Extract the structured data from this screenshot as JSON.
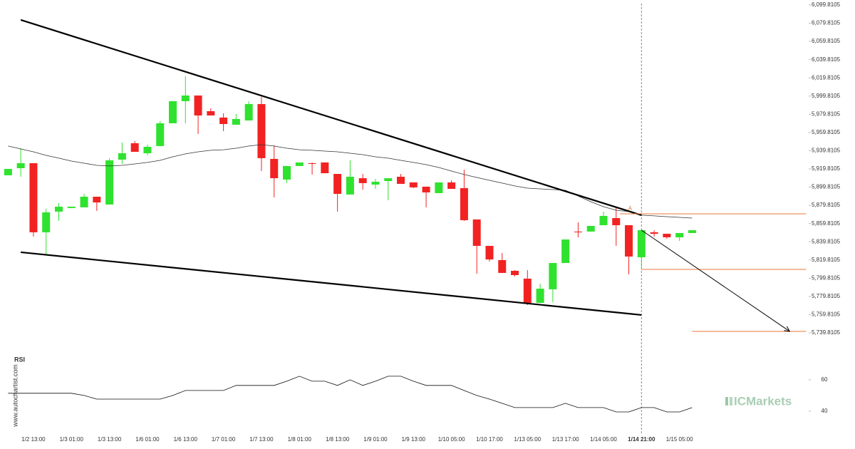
{
  "chart_data": {
    "type": "candlestick",
    "categories": [
      null,
      null,
      "1/2 13:00",
      null,
      null,
      "1/3 01:00",
      null,
      null,
      "1/3 13:00",
      null,
      null,
      "1/6 01:00",
      null,
      null,
      "1/6 13:00",
      null,
      null,
      "1/7 01:00",
      null,
      null,
      "1/7 13:00",
      null,
      null,
      "1/8 01:00",
      null,
      null,
      "1/8 13:00",
      null,
      null,
      "1/9 01:00",
      null,
      null,
      "1/9 13:00",
      null,
      null,
      "1/10 05:00",
      null,
      null,
      "1/10 17:00",
      null,
      null,
      "1/13 05:00",
      null,
      null,
      "1/13 17:00",
      null,
      null,
      "1/14 05:00",
      null,
      null,
      "1/14 21:00",
      null,
      null,
      "1/15 05:00",
      null
    ],
    "open": [
      5912.8,
      5920.6,
      5926.1,
      5850.2,
      5872.9,
      5876.8,
      5877.6,
      5889.3,
      5880.7,
      5930.0,
      5948.0,
      5937.0,
      5944.9,
      5969.9,
      5994.2,
      6000.4,
      5983.2,
      5976.2,
      5968.3,
      5973.0,
      5991.0,
      5930.8,
      5908.1,
      5923.0,
      5926.1,
      5926.9,
      5914.3,
      5891.7,
      5909.6,
      5902.6,
      5906.5,
      5911.2,
      5905.0,
      5900.3,
      5893.2,
      5905.0,
      5898.7,
      5864.3,
      5835.3,
      5819.7,
      5807.9,
      5799.3,
      5772.7,
      5787.6,
      5816.5,
      5851.0,
      5851.0,
      5858.0,
      5865.8,
      5858.0,
      5822.8,
      5850.2,
      5848.6,
      5844.7,
      5849.4
    ],
    "high": [
      5919.8,
      5942.5,
      5926.1,
      5876.0,
      5882.3,
      5878.3,
      5892.4,
      5889.3,
      5931.6,
      5948.8,
      5950.3,
      5946.4,
      5972.3,
      5994.2,
      6021.6,
      6000.4,
      5986.3,
      5980.9,
      5980.1,
      5994.2,
      5998.9,
      5945.6,
      5923.0,
      5926.9,
      5926.9,
      5926.9,
      5914.3,
      5929.2,
      5914.3,
      5908.9,
      5909.6,
      5914.3,
      5905.0,
      5900.3,
      5905.0,
      5907.3,
      5919.0,
      5864.3,
      5835.3,
      5827.5,
      5808.7,
      5808.7,
      5793.8,
      5816.5,
      5842.3,
      5861.1,
      5857.2,
      5872.9,
      5878.3,
      5858.0,
      5852.5,
      5852.5,
      5848.6,
      5849.4,
      5852.5
    ],
    "low": [
      5912.8,
      5911.2,
      5845.5,
      5825.9,
      5862.7,
      5876.8,
      5877.6,
      5873.7,
      5880.7,
      5925.3,
      5938.6,
      5934.7,
      5944.9,
      5969.9,
      5969.9,
      5958.2,
      5978.5,
      5961.3,
      5968.3,
      5973.0,
      5917.5,
      5888.5,
      5904.2,
      5923.0,
      5913.6,
      5915.1,
      5872.9,
      5891.7,
      5897.1,
      5897.9,
      5885.4,
      5903.4,
      5898.7,
      5877.6,
      5893.2,
      5897.9,
      5862.7,
      5804.8,
      5818.1,
      5805.6,
      5801.7,
      5770.3,
      5772.7,
      5773.5,
      5816.5,
      5844.7,
      5851.0,
      5858.0,
      5835.3,
      5804.0,
      5810.3,
      5845.5,
      5843.1,
      5840.8,
      5849.4
    ],
    "close": [
      5919.8,
      5926.1,
      5850.2,
      5872.1,
      5878.3,
      5878.3,
      5889.3,
      5883.0,
      5929.2,
      5937.0,
      5938.6,
      5944.1,
      5969.9,
      5994.2,
      6000.4,
      5978.5,
      5978.5,
      5969.1,
      5974.6,
      5991.0,
      5931.6,
      5909.6,
      5923.0,
      5926.9,
      5925.3,
      5915.1,
      5892.4,
      5911.2,
      5904.2,
      5905.7,
      5909.6,
      5903.4,
      5899.5,
      5894.0,
      5905.0,
      5897.9,
      5863.5,
      5835.3,
      5820.4,
      5805.6,
      5803.2,
      5772.7,
      5788.3,
      5816.5,
      5842.3,
      5850.2,
      5857.2,
      5868.2,
      5858.0,
      5823.6,
      5852.5,
      5848.6,
      5844.7,
      5849.4,
      5852.5
    ],
    "up_color": "#2fe22f",
    "down_color": "#f22222",
    "xlim": [
      -0.64,
      63.2
    ],
    "ylim": [
      5721.8,
      6105.3
    ],
    "yticks": [
      {
        "value": 6099.8105,
        "label": "6,099.8105"
      },
      {
        "value": 6079.8105,
        "label": "6,079.8105"
      },
      {
        "value": 6059.8105,
        "label": "6,059.8105"
      },
      {
        "value": 6039.8105,
        "label": "6,039.8105"
      },
      {
        "value": 6019.8105,
        "label": "6,019.8105"
      },
      {
        "value": 5999.8105,
        "label": "5,999.8105"
      },
      {
        "value": 5979.8105,
        "label": "5,979.8105"
      },
      {
        "value": 5959.8105,
        "label": "5,959.8105"
      },
      {
        "value": 5939.8105,
        "label": "5,939.8105"
      },
      {
        "value": 5919.8105,
        "label": "5,919.8105"
      },
      {
        "value": 5899.8105,
        "label": "5,899.8105"
      },
      {
        "value": 5879.8105,
        "label": "5,879.8105"
      },
      {
        "value": 5859.8105,
        "label": "5,859.8105"
      },
      {
        "value": 5839.8105,
        "label": "5,839.8105"
      },
      {
        "value": 5819.8105,
        "label": "5,819.8105"
      },
      {
        "value": 5799.8105,
        "label": "5,799.8105"
      },
      {
        "value": 5779.8105,
        "label": "5,779.8105"
      },
      {
        "value": 5759.8105,
        "label": "5,759.8105"
      },
      {
        "value": 5739.8105,
        "label": "5,739.8105"
      }
    ],
    "ma": {
      "color": "#333333",
      "values": [
        5944.9,
        5941.7,
        5938.6,
        5934.7,
        5931.6,
        5928.4,
        5926.1,
        5923.7,
        5923.0,
        5923.7,
        5925.3,
        5926.9,
        5929.2,
        5933.1,
        5936.3,
        5938.6,
        5940.2,
        5940.9,
        5942.5,
        5944.9,
        5946.4,
        5944.9,
        5942.5,
        5940.9,
        5940.2,
        5939.4,
        5938.6,
        5937.0,
        5935.5,
        5933.1,
        5931.6,
        5929.2,
        5926.9,
        5924.5,
        5921.4,
        5917.5,
        5913.6,
        5910.4,
        5907.3,
        5904.2,
        5901.1,
        5898.7,
        5897.9,
        5897.1,
        5896.3,
        5890.1,
        5883.8,
        5878.3,
        5874.4,
        5872.9,
        5869.0,
        5868.2,
        5867.4,
        5866.6,
        5865.8
      ]
    },
    "current_index": 50,
    "trend_lines": [
      {
        "from": [
          1,
          6083.4
        ],
        "to": [
          50,
          5869.0
        ]
      },
      {
        "from": [
          1,
          5828.3
        ],
        "to": [
          50,
          5759.4
        ]
      }
    ],
    "arrow": {
      "from": [
        50,
        5852.5
      ],
      "to": [
        61.7,
        5741.4
      ]
    },
    "levels": [
      {
        "from": 48.3,
        "to": 63,
        "value": 5870.5
      },
      {
        "from": 50,
        "to": 63,
        "value": 5809.5
      },
      {
        "from": 54,
        "to": 63,
        "value": 5741.4
      }
    ],
    "level_color": "#e8773a",
    "marker": {
      "label": "A",
      "x": 49.1,
      "value": 5876.0
    },
    "rsi": {
      "title": "RSI",
      "color": "#111111",
      "ylim": [
        29.5,
        72.7
      ],
      "yticks": [
        40,
        60
      ],
      "values": [
        51.4,
        51.4,
        51.4,
        51.4,
        51.4,
        51.4,
        50.0,
        47.7,
        47.7,
        47.7,
        47.7,
        47.7,
        47.7,
        50.0,
        53.2,
        53.2,
        53.2,
        53.2,
        56.4,
        56.4,
        56.4,
        56.4,
        59.1,
        62.3,
        59.1,
        59.1,
        56.4,
        60.0,
        56.4,
        59.1,
        62.3,
        62.3,
        59.1,
        56.4,
        56.4,
        56.4,
        53.2,
        50.0,
        47.7,
        45.0,
        42.3,
        42.3,
        42.3,
        42.3,
        45.0,
        42.3,
        42.3,
        42.3,
        39.5,
        39.5,
        42.3,
        42.3,
        39.5,
        39.5,
        42.3
      ]
    },
    "watermark": "www.autochartist.com",
    "logo": "ICMarkets"
  }
}
